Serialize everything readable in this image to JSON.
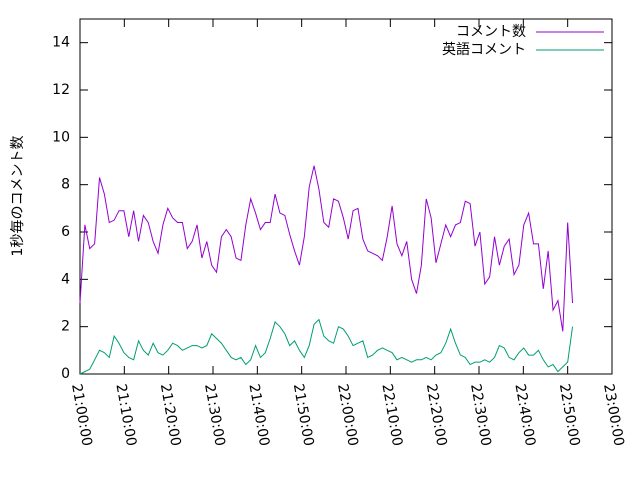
{
  "chart_data": {
    "type": "line",
    "y_label": "1秒毎のコメント数",
    "x": [
      "21:00:00",
      "21:01:06",
      "21:02:12",
      "21:03:18",
      "21:04:24",
      "21:05:30",
      "21:06:36",
      "21:07:42",
      "21:08:48",
      "21:09:54",
      "21:11:00",
      "21:12:06",
      "21:13:12",
      "21:14:18",
      "21:15:24",
      "21:16:30",
      "21:17:36",
      "21:18:42",
      "21:19:48",
      "21:20:54",
      "21:22:00",
      "21:23:06",
      "21:24:12",
      "21:25:18",
      "21:26:24",
      "21:27:30",
      "21:28:36",
      "21:29:42",
      "21:30:48",
      "21:31:54",
      "21:33:00",
      "21:34:06",
      "21:35:12",
      "21:36:18",
      "21:37:24",
      "21:38:30",
      "21:39:36",
      "21:40:42",
      "21:41:48",
      "21:42:54",
      "21:44:00",
      "21:45:06",
      "21:46:12",
      "21:47:18",
      "21:48:24",
      "21:49:30",
      "21:50:36",
      "21:51:42",
      "21:52:48",
      "21:53:54",
      "21:55:00",
      "21:56:06",
      "21:57:12",
      "21:58:18",
      "21:59:24",
      "22:00:30",
      "22:01:36",
      "22:02:42",
      "22:03:48",
      "22:04:54",
      "22:06:00",
      "22:07:06",
      "22:08:12",
      "22:09:18",
      "22:10:24",
      "22:11:30",
      "22:12:36",
      "22:13:42",
      "22:14:48",
      "22:15:54",
      "22:17:00",
      "22:18:06",
      "22:19:12",
      "22:20:18",
      "22:21:24",
      "22:22:30",
      "22:23:36",
      "22:24:42",
      "22:25:48",
      "22:26:54",
      "22:28:00",
      "22:29:06",
      "22:30:12",
      "22:31:18",
      "22:32:24",
      "22:33:30",
      "22:34:36",
      "22:35:42",
      "22:36:48",
      "22:37:54",
      "22:39:00",
      "22:40:06",
      "22:41:12",
      "22:42:18",
      "22:43:24",
      "22:44:30",
      "22:45:36",
      "22:46:42",
      "22:47:48",
      "22:48:54",
      "22:50:00",
      "22:51:06"
    ],
    "series": [
      {
        "name": "コメント数",
        "color": "#9400d3",
        "values": [
          3.0,
          6.3,
          5.3,
          5.5,
          8.3,
          7.6,
          6.4,
          6.5,
          6.9,
          6.9,
          5.8,
          6.9,
          5.6,
          6.7,
          6.4,
          5.6,
          5.1,
          6.3,
          7.0,
          6.6,
          6.4,
          6.4,
          5.3,
          5.6,
          6.3,
          4.9,
          5.6,
          4.6,
          4.3,
          5.8,
          6.1,
          5.8,
          4.9,
          4.8,
          6.3,
          7.4,
          6.8,
          6.1,
          6.4,
          6.4,
          7.6,
          6.8,
          6.7,
          5.9,
          5.2,
          4.6,
          5.8,
          7.9,
          8.8,
          7.8,
          6.4,
          6.2,
          7.4,
          7.3,
          6.6,
          5.7,
          6.9,
          7.0,
          5.7,
          5.2,
          5.1,
          5.0,
          4.8,
          5.8,
          7.1,
          5.5,
          5.0,
          5.6,
          4.0,
          3.4,
          4.6,
          7.4,
          6.6,
          4.7,
          5.5,
          6.3,
          5.8,
          6.3,
          6.4,
          7.3,
          7.2,
          5.4,
          6.0,
          3.8,
          4.1,
          5.8,
          4.6,
          5.4,
          5.7,
          4.2,
          4.6,
          6.3,
          6.8,
          5.5,
          5.5,
          3.6,
          5.2,
          2.7,
          3.1,
          1.8,
          6.4,
          3.0
        ]
      },
      {
        "name": "英語コメント",
        "color": "#009e73",
        "values": [
          0.0,
          0.1,
          0.2,
          0.6,
          1.0,
          0.9,
          0.7,
          1.6,
          1.3,
          0.9,
          0.7,
          0.6,
          1.4,
          1.0,
          0.8,
          1.3,
          0.9,
          0.8,
          1.0,
          1.3,
          1.2,
          1.0,
          1.1,
          1.2,
          1.2,
          1.1,
          1.2,
          1.7,
          1.5,
          1.3,
          1.0,
          0.7,
          0.6,
          0.7,
          0.4,
          0.6,
          1.2,
          0.7,
          0.9,
          1.5,
          2.2,
          2.0,
          1.7,
          1.2,
          1.4,
          1.0,
          0.7,
          1.2,
          2.1,
          2.3,
          1.6,
          1.4,
          1.3,
          2.0,
          1.9,
          1.6,
          1.2,
          1.3,
          1.4,
          0.7,
          0.8,
          1.0,
          1.1,
          1.0,
          0.9,
          0.6,
          0.7,
          0.6,
          0.5,
          0.6,
          0.6,
          0.7,
          0.6,
          0.8,
          0.9,
          1.3,
          1.9,
          1.3,
          0.8,
          0.7,
          0.4,
          0.5,
          0.5,
          0.6,
          0.5,
          0.7,
          1.2,
          1.1,
          0.7,
          0.6,
          0.9,
          1.1,
          0.8,
          0.8,
          1.0,
          0.6,
          0.3,
          0.4,
          0.1,
          0.3,
          0.5,
          2.0
        ]
      }
    ],
    "xlim": [
      "21:00:00",
      "23:00:00"
    ],
    "xticks": [
      "21:00:00",
      "21:10:00",
      "21:20:00",
      "21:30:00",
      "21:40:00",
      "21:50:00",
      "22:00:00",
      "22:10:00",
      "22:20:00",
      "22:30:00",
      "22:40:00",
      "22:50:00",
      "23:00:00"
    ],
    "ylim": [
      0,
      15
    ],
    "yticks": [
      0,
      2,
      4,
      6,
      8,
      10,
      12,
      14
    ],
    "legend": "top-right",
    "grid": false
  }
}
